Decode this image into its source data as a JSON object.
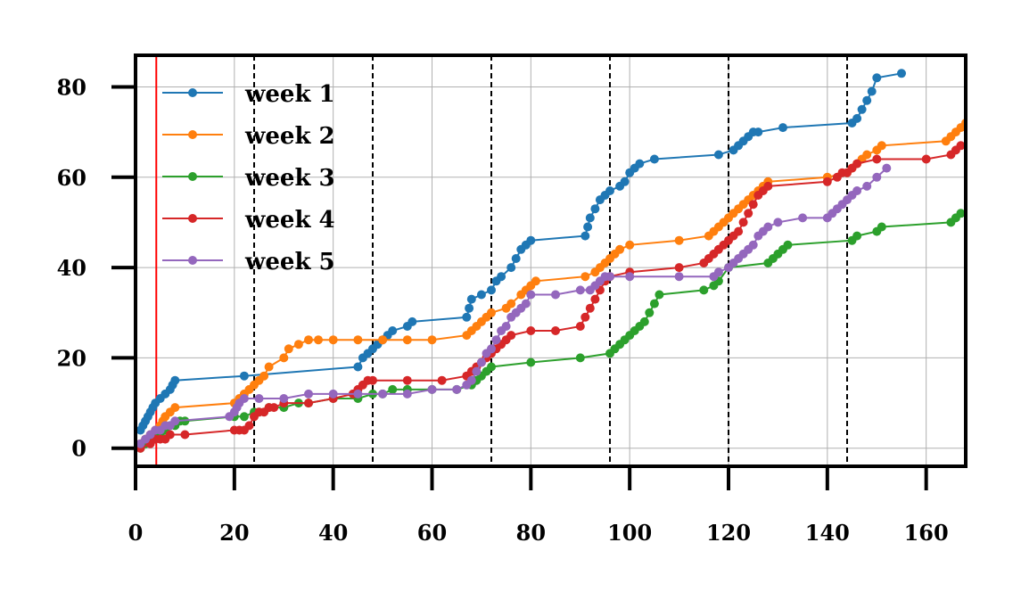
{
  "chart_data": {
    "type": "line",
    "title": "",
    "xlabel": "",
    "ylabel": "",
    "xlim": [
      0,
      168
    ],
    "ylim": [
      -4,
      87
    ],
    "x_ticks": [
      0,
      20,
      40,
      60,
      80,
      100,
      120,
      140,
      160
    ],
    "y_ticks": [
      0,
      20,
      40,
      60,
      80
    ],
    "x_tick_labels": [
      "0",
      "20",
      "40",
      "60",
      "80",
      "100",
      "120",
      "140",
      "160"
    ],
    "y_tick_labels": [
      "0",
      "20",
      "40",
      "60",
      "80"
    ],
    "grid": true,
    "legend_position": "upper-left",
    "vertical_markers": {
      "solid_red": [
        4.2
      ],
      "dashed_black": [
        24,
        48,
        72,
        96,
        120,
        144
      ]
    },
    "series": [
      {
        "name": "week 1",
        "color": "#1f77b4",
        "x": [
          1,
          1.5,
          2,
          2.5,
          3,
          3.5,
          4,
          5,
          6,
          7,
          7.5,
          8,
          22,
          45,
          46,
          47,
          48,
          49,
          50,
          51,
          52,
          55,
          56,
          67,
          67.5,
          68,
          70,
          72,
          73,
          74,
          76,
          77,
          78,
          79,
          80,
          91,
          91.5,
          92,
          93,
          94,
          95,
          96,
          98,
          99,
          100,
          101,
          102,
          105,
          118,
          121,
          122,
          123,
          124,
          125,
          126,
          131,
          145,
          146,
          147,
          148,
          149,
          150,
          155
        ],
        "y": [
          4,
          5,
          6,
          7,
          8,
          9,
          10,
          11,
          12,
          13,
          14,
          15,
          16,
          18,
          20,
          21,
          22,
          23,
          24,
          25,
          26,
          27,
          28,
          29,
          31,
          33,
          34,
          35,
          37,
          38,
          40,
          42,
          44,
          45,
          46,
          47,
          49,
          51,
          53,
          55,
          56,
          57,
          58,
          59,
          61,
          62,
          63,
          64,
          65,
          66,
          67,
          68,
          69,
          70,
          70,
          71,
          72,
          73,
          75,
          77,
          79,
          82,
          83
        ]
      },
      {
        "name": "week 2",
        "color": "#ff7f0e",
        "x": [
          1,
          2,
          3,
          4,
          5,
          5.5,
          6,
          7,
          8,
          20,
          21,
          22,
          23,
          24,
          25,
          26,
          27,
          30,
          31,
          33,
          35,
          37,
          40,
          45,
          50,
          55,
          60,
          67,
          68,
          69,
          70,
          71,
          72,
          75,
          76,
          78,
          79,
          80,
          81,
          91,
          93,
          94,
          95,
          96,
          97,
          98,
          100,
          110,
          116,
          117,
          118,
          119,
          120,
          121,
          122,
          123,
          124,
          125,
          126,
          127,
          128,
          140,
          144,
          145,
          146,
          147,
          148,
          150,
          151,
          164,
          165,
          166,
          167,
          168
        ],
        "y": [
          1,
          2,
          3,
          4,
          5,
          6,
          7,
          8,
          9,
          10,
          11,
          12,
          13,
          14,
          15,
          16,
          18,
          20,
          22,
          23,
          24,
          24,
          24,
          24,
          24,
          24,
          24,
          25,
          26,
          27,
          28,
          29,
          30,
          31,
          32,
          34,
          35,
          36,
          37,
          38,
          39,
          40,
          41,
          42,
          43,
          44,
          45,
          46,
          47,
          48,
          49,
          50,
          51,
          52,
          53,
          54,
          55,
          56,
          57,
          58,
          59,
          60,
          61,
          62,
          63,
          64,
          65,
          66,
          67,
          68,
          69,
          70,
          71,
          72
        ]
      },
      {
        "name": "week 3",
        "color": "#2ca02c",
        "x": [
          1,
          2,
          3,
          4,
          5,
          6,
          7,
          8,
          9,
          10,
          20,
          22,
          24,
          25,
          27,
          30,
          33,
          35,
          40,
          45,
          48,
          50,
          52,
          55,
          60,
          65,
          68,
          69,
          70,
          71,
          72,
          80,
          90,
          96,
          97,
          98,
          99,
          100,
          101,
          102,
          103,
          104,
          105,
          106,
          115,
          117,
          118,
          120,
          128,
          129,
          130,
          131,
          132,
          145,
          146,
          150,
          151,
          165,
          166,
          167
        ],
        "y": [
          0,
          1,
          2,
          3,
          3,
          4,
          5,
          5,
          6,
          6,
          7,
          7,
          8,
          8,
          9,
          9,
          10,
          10,
          11,
          11,
          12,
          12,
          13,
          13,
          13,
          13,
          14,
          15,
          16,
          17,
          18,
          19,
          20,
          21,
          22,
          23,
          24,
          25,
          26,
          27,
          28,
          30,
          32,
          34,
          35,
          36,
          37,
          40,
          41,
          42,
          43,
          44,
          45,
          46,
          47,
          48,
          49,
          50,
          51,
          52
        ]
      },
      {
        "name": "week 4",
        "color": "#d62728",
        "x": [
          1,
          3,
          4,
          5,
          6,
          7,
          10,
          20,
          21,
          22,
          23,
          24,
          25,
          26,
          27,
          28,
          30,
          35,
          40,
          44,
          45,
          46,
          47,
          48,
          55,
          62,
          67,
          68,
          69,
          70,
          71,
          72,
          73,
          74,
          75,
          76,
          80,
          85,
          90,
          91,
          92,
          93,
          94,
          95,
          96,
          100,
          110,
          115,
          116,
          117,
          118,
          119,
          120,
          121,
          122,
          123,
          124,
          125,
          126,
          127,
          128,
          140,
          142,
          143,
          144,
          145,
          146,
          150,
          160,
          165,
          166,
          167
        ],
        "y": [
          0,
          1,
          2,
          2,
          2,
          3,
          3,
          4,
          4,
          4,
          5,
          7,
          8,
          8,
          9,
          9,
          10,
          10,
          11,
          12,
          13,
          14,
          15,
          15,
          15,
          15,
          16,
          17,
          18,
          19,
          20,
          21,
          22,
          23,
          24,
          25,
          26,
          26,
          27,
          29,
          31,
          33,
          35,
          37,
          38,
          39,
          40,
          41,
          42,
          43,
          44,
          45,
          46,
          47,
          48,
          50,
          52,
          54,
          56,
          57,
          58,
          59,
          60,
          61,
          61,
          62,
          63,
          64,
          64,
          65,
          66,
          67
        ]
      },
      {
        "name": "week 5",
        "color": "#9467bd",
        "x": [
          1,
          2,
          3,
          4,
          5,
          6,
          7,
          8,
          19,
          20,
          20.5,
          21,
          22,
          25,
          30,
          35,
          40,
          45,
          50,
          55,
          60,
          65,
          67,
          68,
          69,
          70,
          71,
          72,
          73,
          74,
          75,
          76,
          77,
          78,
          79,
          80,
          85,
          90,
          92,
          93,
          94,
          95,
          96,
          100,
          110,
          117,
          118,
          120,
          121,
          122,
          123,
          124,
          125,
          126,
          127,
          128,
          130,
          135,
          140,
          141,
          142,
          143,
          144,
          145,
          146,
          148,
          150,
          152
        ],
        "y": [
          1,
          2,
          3,
          4,
          4,
          5,
          5,
          6,
          7,
          8,
          9,
          10,
          11,
          11,
          11,
          12,
          12,
          12,
          12,
          12,
          13,
          13,
          14,
          15,
          17,
          19,
          21,
          22,
          24,
          26,
          27,
          29,
          30,
          31,
          32,
          34,
          34,
          35,
          35,
          36,
          37,
          38,
          38,
          38,
          38,
          38,
          39,
          40,
          41,
          42,
          43,
          44,
          45,
          47,
          48,
          49,
          50,
          51,
          51,
          52,
          53,
          54,
          55,
          56,
          57,
          58,
          60,
          62
        ]
      }
    ]
  }
}
